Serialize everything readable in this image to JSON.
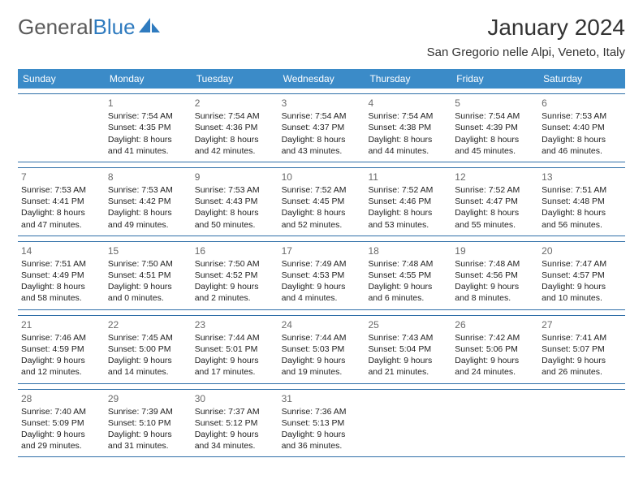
{
  "brand": {
    "part1": "General",
    "part2": "Blue"
  },
  "title": "January 2024",
  "location": "San Gregorio nelle Alpi, Veneto, Italy",
  "colors": {
    "header_bg": "#3b8bc8",
    "header_text": "#ffffff",
    "border": "#2f6fa8",
    "logo_gray": "#5a5a5a",
    "logo_blue": "#2f7bbf",
    "text": "#222222",
    "daynum": "#6a6a6a"
  },
  "weekdays": [
    "Sunday",
    "Monday",
    "Tuesday",
    "Wednesday",
    "Thursday",
    "Friday",
    "Saturday"
  ],
  "weeks": [
    [
      {
        "num": "",
        "sunrise": "",
        "sunset": "",
        "daylight": ""
      },
      {
        "num": "1",
        "sunrise": "Sunrise: 7:54 AM",
        "sunset": "Sunset: 4:35 PM",
        "daylight": "Daylight: 8 hours and 41 minutes."
      },
      {
        "num": "2",
        "sunrise": "Sunrise: 7:54 AM",
        "sunset": "Sunset: 4:36 PM",
        "daylight": "Daylight: 8 hours and 42 minutes."
      },
      {
        "num": "3",
        "sunrise": "Sunrise: 7:54 AM",
        "sunset": "Sunset: 4:37 PM",
        "daylight": "Daylight: 8 hours and 43 minutes."
      },
      {
        "num": "4",
        "sunrise": "Sunrise: 7:54 AM",
        "sunset": "Sunset: 4:38 PM",
        "daylight": "Daylight: 8 hours and 44 minutes."
      },
      {
        "num": "5",
        "sunrise": "Sunrise: 7:54 AM",
        "sunset": "Sunset: 4:39 PM",
        "daylight": "Daylight: 8 hours and 45 minutes."
      },
      {
        "num": "6",
        "sunrise": "Sunrise: 7:53 AM",
        "sunset": "Sunset: 4:40 PM",
        "daylight": "Daylight: 8 hours and 46 minutes."
      }
    ],
    [
      {
        "num": "7",
        "sunrise": "Sunrise: 7:53 AM",
        "sunset": "Sunset: 4:41 PM",
        "daylight": "Daylight: 8 hours and 47 minutes."
      },
      {
        "num": "8",
        "sunrise": "Sunrise: 7:53 AM",
        "sunset": "Sunset: 4:42 PM",
        "daylight": "Daylight: 8 hours and 49 minutes."
      },
      {
        "num": "9",
        "sunrise": "Sunrise: 7:53 AM",
        "sunset": "Sunset: 4:43 PM",
        "daylight": "Daylight: 8 hours and 50 minutes."
      },
      {
        "num": "10",
        "sunrise": "Sunrise: 7:52 AM",
        "sunset": "Sunset: 4:45 PM",
        "daylight": "Daylight: 8 hours and 52 minutes."
      },
      {
        "num": "11",
        "sunrise": "Sunrise: 7:52 AM",
        "sunset": "Sunset: 4:46 PM",
        "daylight": "Daylight: 8 hours and 53 minutes."
      },
      {
        "num": "12",
        "sunrise": "Sunrise: 7:52 AM",
        "sunset": "Sunset: 4:47 PM",
        "daylight": "Daylight: 8 hours and 55 minutes."
      },
      {
        "num": "13",
        "sunrise": "Sunrise: 7:51 AM",
        "sunset": "Sunset: 4:48 PM",
        "daylight": "Daylight: 8 hours and 56 minutes."
      }
    ],
    [
      {
        "num": "14",
        "sunrise": "Sunrise: 7:51 AM",
        "sunset": "Sunset: 4:49 PM",
        "daylight": "Daylight: 8 hours and 58 minutes."
      },
      {
        "num": "15",
        "sunrise": "Sunrise: 7:50 AM",
        "sunset": "Sunset: 4:51 PM",
        "daylight": "Daylight: 9 hours and 0 minutes."
      },
      {
        "num": "16",
        "sunrise": "Sunrise: 7:50 AM",
        "sunset": "Sunset: 4:52 PM",
        "daylight": "Daylight: 9 hours and 2 minutes."
      },
      {
        "num": "17",
        "sunrise": "Sunrise: 7:49 AM",
        "sunset": "Sunset: 4:53 PM",
        "daylight": "Daylight: 9 hours and 4 minutes."
      },
      {
        "num": "18",
        "sunrise": "Sunrise: 7:48 AM",
        "sunset": "Sunset: 4:55 PM",
        "daylight": "Daylight: 9 hours and 6 minutes."
      },
      {
        "num": "19",
        "sunrise": "Sunrise: 7:48 AM",
        "sunset": "Sunset: 4:56 PM",
        "daylight": "Daylight: 9 hours and 8 minutes."
      },
      {
        "num": "20",
        "sunrise": "Sunrise: 7:47 AM",
        "sunset": "Sunset: 4:57 PM",
        "daylight": "Daylight: 9 hours and 10 minutes."
      }
    ],
    [
      {
        "num": "21",
        "sunrise": "Sunrise: 7:46 AM",
        "sunset": "Sunset: 4:59 PM",
        "daylight": "Daylight: 9 hours and 12 minutes."
      },
      {
        "num": "22",
        "sunrise": "Sunrise: 7:45 AM",
        "sunset": "Sunset: 5:00 PM",
        "daylight": "Daylight: 9 hours and 14 minutes."
      },
      {
        "num": "23",
        "sunrise": "Sunrise: 7:44 AM",
        "sunset": "Sunset: 5:01 PM",
        "daylight": "Daylight: 9 hours and 17 minutes."
      },
      {
        "num": "24",
        "sunrise": "Sunrise: 7:44 AM",
        "sunset": "Sunset: 5:03 PM",
        "daylight": "Daylight: 9 hours and 19 minutes."
      },
      {
        "num": "25",
        "sunrise": "Sunrise: 7:43 AM",
        "sunset": "Sunset: 5:04 PM",
        "daylight": "Daylight: 9 hours and 21 minutes."
      },
      {
        "num": "26",
        "sunrise": "Sunrise: 7:42 AM",
        "sunset": "Sunset: 5:06 PM",
        "daylight": "Daylight: 9 hours and 24 minutes."
      },
      {
        "num": "27",
        "sunrise": "Sunrise: 7:41 AM",
        "sunset": "Sunset: 5:07 PM",
        "daylight": "Daylight: 9 hours and 26 minutes."
      }
    ],
    [
      {
        "num": "28",
        "sunrise": "Sunrise: 7:40 AM",
        "sunset": "Sunset: 5:09 PM",
        "daylight": "Daylight: 9 hours and 29 minutes."
      },
      {
        "num": "29",
        "sunrise": "Sunrise: 7:39 AM",
        "sunset": "Sunset: 5:10 PM",
        "daylight": "Daylight: 9 hours and 31 minutes."
      },
      {
        "num": "30",
        "sunrise": "Sunrise: 7:37 AM",
        "sunset": "Sunset: 5:12 PM",
        "daylight": "Daylight: 9 hours and 34 minutes."
      },
      {
        "num": "31",
        "sunrise": "Sunrise: 7:36 AM",
        "sunset": "Sunset: 5:13 PM",
        "daylight": "Daylight: 9 hours and 36 minutes."
      },
      {
        "num": "",
        "sunrise": "",
        "sunset": "",
        "daylight": ""
      },
      {
        "num": "",
        "sunrise": "",
        "sunset": "",
        "daylight": ""
      },
      {
        "num": "",
        "sunrise": "",
        "sunset": "",
        "daylight": ""
      }
    ]
  ]
}
